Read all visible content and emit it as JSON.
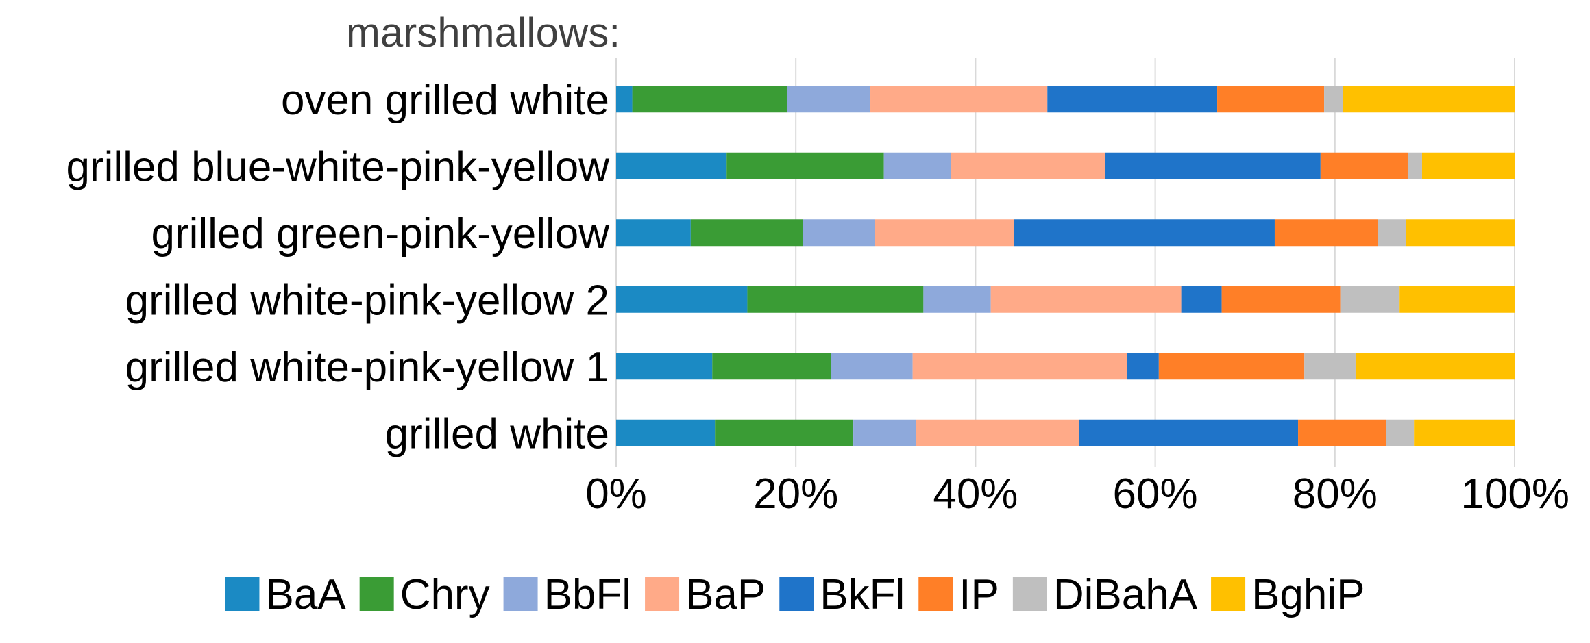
{
  "chart_data": {
    "type": "bar",
    "orientation": "horizontal",
    "stacked": true,
    "percent_stacked": true,
    "title": "marshmallows:",
    "xlabel": "",
    "ylabel": "",
    "xlim": [
      0,
      100
    ],
    "x_ticks": [
      "0%",
      "20%",
      "40%",
      "60%",
      "80%",
      "100%"
    ],
    "grid": true,
    "legend_position": "bottom",
    "categories": [
      "oven grilled white",
      "grilled blue-white-pink-yellow",
      "grilled green-pink-yellow",
      "grilled white-pink-yellow 2",
      "grilled white-pink-yellow 1",
      "grilled white"
    ],
    "series": [
      {
        "name": "BaA",
        "color": "#1B8AC4",
        "values": [
          1.8,
          12.3,
          8.3,
          14.6,
          10.7,
          11.0
        ]
      },
      {
        "name": "Chry",
        "color": "#3A9C35",
        "values": [
          17.2,
          17.5,
          12.5,
          19.6,
          13.2,
          15.4
        ]
      },
      {
        "name": "BbFl",
        "color": "#8EA9DB",
        "values": [
          9.3,
          7.5,
          8.0,
          7.5,
          9.1,
          7.0
        ]
      },
      {
        "name": "BaP",
        "color": "#FFAA88",
        "values": [
          19.7,
          17.1,
          15.5,
          21.2,
          23.9,
          18.1
        ]
      },
      {
        "name": "BkFl",
        "color": "#1F74C9",
        "values": [
          18.9,
          24.0,
          29.0,
          4.5,
          3.5,
          24.4
        ]
      },
      {
        "name": "IP",
        "color": "#FF7F27",
        "values": [
          11.9,
          9.7,
          11.5,
          13.2,
          16.2,
          9.8
        ]
      },
      {
        "name": "DiBahA",
        "color": "#BFBFBF",
        "values": [
          2.1,
          1.6,
          3.1,
          6.6,
          5.7,
          3.1
        ]
      },
      {
        "name": "BghiP",
        "color": "#FFC000",
        "values": [
          19.1,
          10.3,
          12.1,
          12.8,
          17.7,
          11.2
        ]
      }
    ]
  }
}
